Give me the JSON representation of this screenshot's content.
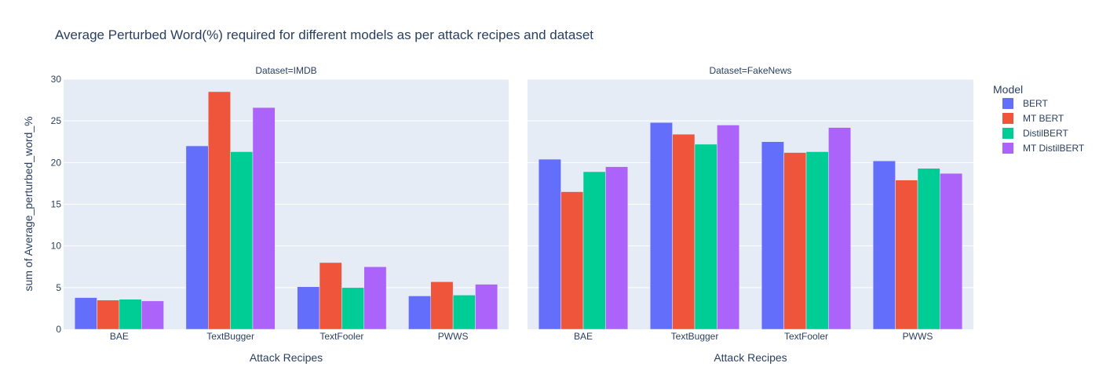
{
  "chart_data": {
    "type": "bar",
    "title": "Average Perturbed Word(%) required for different models as per attack recipes and dataset",
    "ylabel": "sum of Average_perturbed_word_%",
    "xlabel": "Attack Recipes",
    "ylim": [
      0,
      30
    ],
    "yticks": [
      "0",
      "5",
      "10",
      "15",
      "20",
      "25",
      "30"
    ],
    "categories": [
      "BAE",
      "TextBugger",
      "TextFooler",
      "PWWS"
    ],
    "legend": {
      "title": "Model",
      "position": "right",
      "items": [
        {
          "name": "BERT",
          "color": "#636efa"
        },
        {
          "name": "MT BERT",
          "color": "#ef553b"
        },
        {
          "name": "DistilBERT",
          "color": "#00cc96"
        },
        {
          "name": "MT DistilBERT",
          "color": "#ab63fa"
        }
      ]
    },
    "facets": [
      {
        "label": "Dataset=IMDB",
        "series": [
          {
            "name": "BERT",
            "values": [
              3.8,
              22.0,
              5.1,
              4.0
            ]
          },
          {
            "name": "MT BERT",
            "values": [
              3.5,
              28.5,
              8.0,
              5.7
            ]
          },
          {
            "name": "DistilBERT",
            "values": [
              3.6,
              21.3,
              5.0,
              4.1
            ]
          },
          {
            "name": "MT DistilBERT",
            "values": [
              3.4,
              26.6,
              7.5,
              5.4
            ]
          }
        ]
      },
      {
        "label": "Dataset=FakeNews",
        "series": [
          {
            "name": "BERT",
            "values": [
              20.4,
              24.8,
              22.5,
              20.2
            ]
          },
          {
            "name": "MT BERT",
            "values": [
              16.5,
              23.4,
              21.2,
              17.9
            ]
          },
          {
            "name": "DistilBERT",
            "values": [
              18.9,
              22.2,
              21.3,
              19.3
            ]
          },
          {
            "name": "MT DistilBERT",
            "values": [
              19.5,
              24.5,
              24.2,
              18.7
            ]
          }
        ]
      }
    ],
    "grid": true,
    "plot_bgcolor": "#e5ecf6"
  }
}
